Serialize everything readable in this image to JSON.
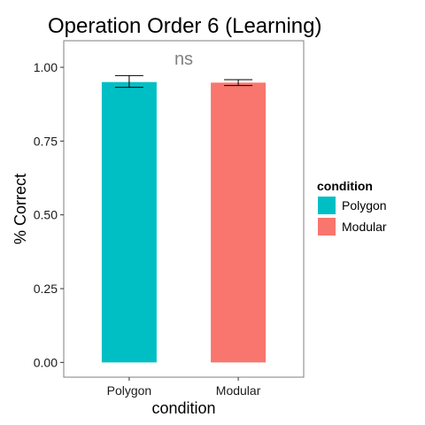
{
  "chart_data": {
    "type": "bar",
    "title": "Operation Order 6 (Learning)",
    "xlabel": "condition",
    "ylabel": "% Correct",
    "categories": [
      "Polygon",
      "Modular"
    ],
    "values": [
      0.95,
      0.948
    ],
    "errors": [
      {
        "low": 0.932,
        "high": 0.972
      },
      {
        "low": 0.938,
        "high": 0.958
      }
    ],
    "colors": [
      "#00BFC4",
      "#F8766D"
    ],
    "ylim": [
      -0.05,
      1.09
    ],
    "yticks": [
      0.0,
      0.25,
      0.5,
      0.75,
      1.0
    ],
    "ytick_labels": [
      "0.00",
      "0.25",
      "0.50",
      "0.75",
      "1.00"
    ],
    "annotation": "ns",
    "grid": false,
    "legend": {
      "title": "condition",
      "position": "right",
      "entries": [
        {
          "label": "Polygon",
          "color": "#00BFC4"
        },
        {
          "label": "Modular",
          "color": "#F8766D"
        }
      ]
    }
  }
}
